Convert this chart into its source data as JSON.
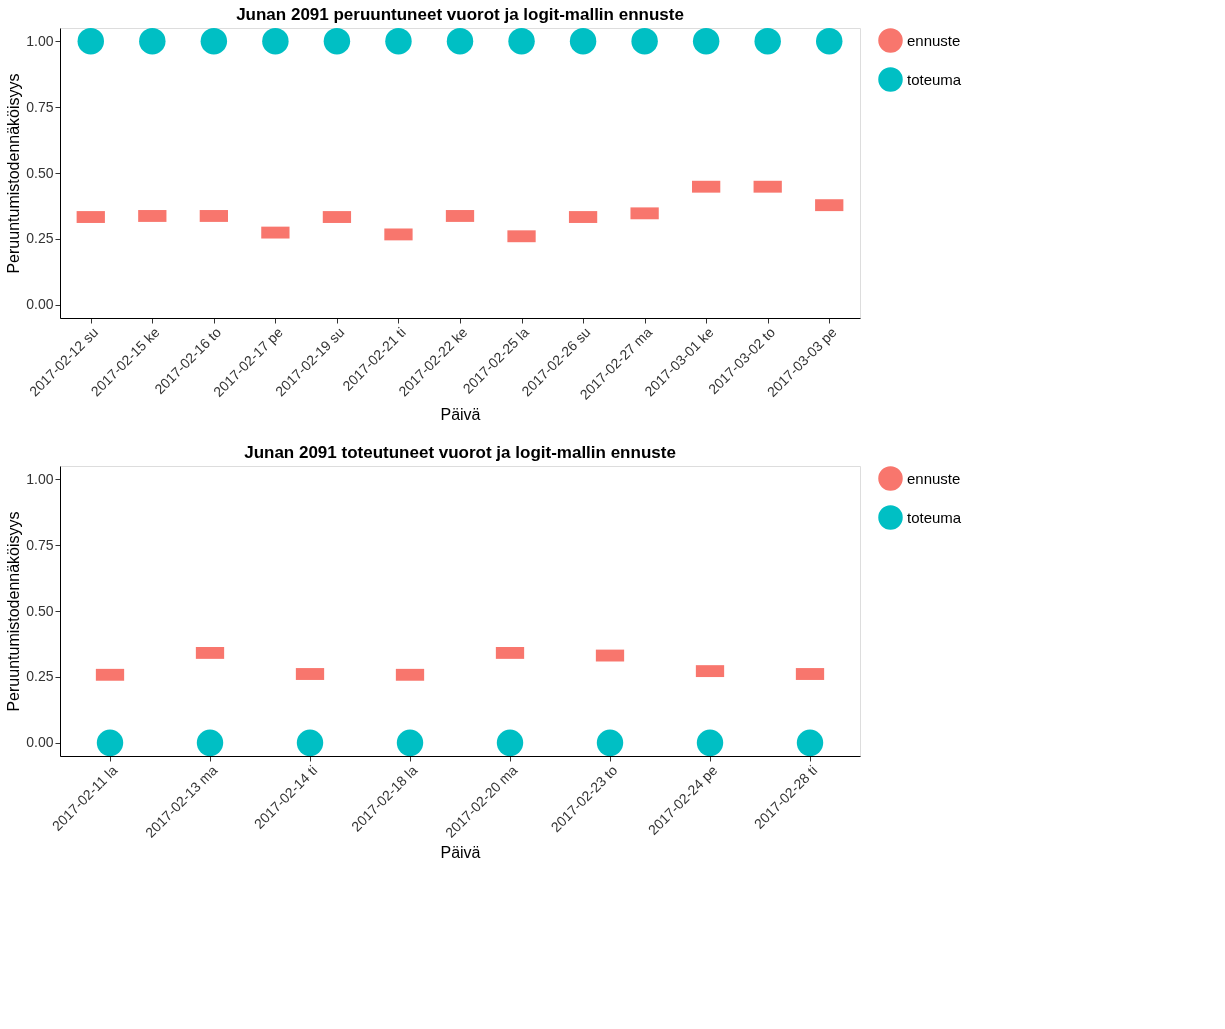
{
  "chart_data": [
    {
      "type": "scatter",
      "title": "Junan 2091 peruuntuneet vuorot ja logit-mallin ennuste",
      "xlabel": "Päivä",
      "ylabel": "Peruuntumistodennäköisyys",
      "categories": [
        "2017-02-12 su",
        "2017-02-15 ke",
        "2017-02-16 to",
        "2017-02-17 pe",
        "2017-02-19 su",
        "2017-02-21 ti",
        "2017-02-22 ke",
        "2017-02-25 la",
        "2017-02-26 su",
        "2017-02-27 ma",
        "2017-03-01 ke",
        "2017-03-02 to",
        "2017-03-03 pe"
      ],
      "series": [
        {
          "name": "ennuste",
          "color": "#f8766d",
          "values": [
            0.333,
            0.337,
            0.337,
            0.274,
            0.333,
            0.267,
            0.337,
            0.26,
            0.333,
            0.347,
            0.448,
            0.448,
            0.378
          ]
        },
        {
          "name": "toteuma",
          "color": "#00bfc4",
          "marker": "circle",
          "values": [
            1,
            1,
            1,
            1,
            1,
            1,
            1,
            1,
            1,
            1,
            1,
            1,
            1
          ]
        }
      ],
      "ylim": [
        -0.05,
        1.05
      ],
      "yticks": [
        {
          "value": 0,
          "label": "0.00"
        },
        {
          "value": 0.25,
          "label": "0.25"
        },
        {
          "value": 0.5,
          "label": "0.50"
        },
        {
          "value": 0.75,
          "label": "0.75"
        },
        {
          "value": 1,
          "label": "1.00"
        }
      ],
      "grid": false,
      "legend": "right"
    },
    {
      "type": "scatter",
      "title": "Junan 2091 toteutuneet vuorot ja logit-mallin ennuste",
      "xlabel": "Päivä",
      "ylabel": "Peruuntumistodennäköisyys",
      "categories": [
        "2017-02-11 la",
        "2017-02-13 ma",
        "2017-02-14 ti",
        "2017-02-18 la",
        "2017-02-20 ma",
        "2017-02-23 to",
        "2017-02-24 pe",
        "2017-02-28 ti"
      ],
      "series": [
        {
          "name": "ennuste",
          "color": "#f8766d",
          "values": [
            0.258,
            0.341,
            0.261,
            0.258,
            0.341,
            0.331,
            0.272,
            0.261
          ]
        },
        {
          "name": "toteuma",
          "color": "#00bfc4",
          "marker": "circle",
          "values": [
            0,
            0,
            0,
            0,
            0,
            0,
            0,
            0
          ]
        }
      ],
      "ylim": [
        -0.05,
        1.05
      ],
      "yticks": [
        {
          "value": 0,
          "label": "0.00"
        },
        {
          "value": 0.25,
          "label": "0.25"
        },
        {
          "value": 0.5,
          "label": "0.50"
        },
        {
          "value": 0.75,
          "label": "0.75"
        },
        {
          "value": 1,
          "label": "1.00"
        }
      ],
      "grid": false,
      "legend": "right"
    }
  ]
}
